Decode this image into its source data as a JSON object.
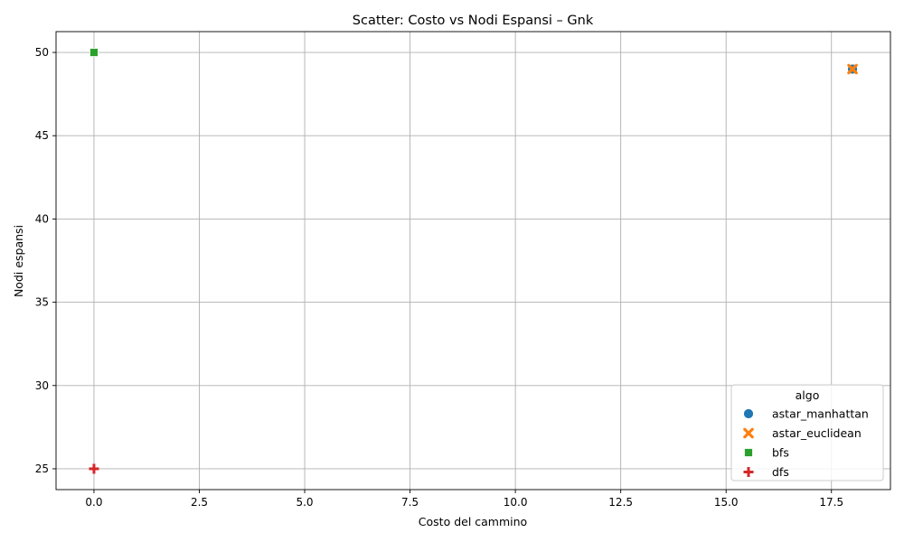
{
  "chart_data": {
    "type": "scatter",
    "title": "Scatter: Costo vs Nodi Espansi – Gnk",
    "xlabel": "Costo del cammino",
    "ylabel": "Nodi espansi",
    "xlim": [
      -0.9,
      18.9
    ],
    "ylim": [
      23.75,
      51.25
    ],
    "xticks": [
      0.0,
      2.5,
      5.0,
      7.5,
      10.0,
      12.5,
      15.0,
      17.5
    ],
    "xtick_labels": [
      "0.0",
      "2.5",
      "5.0",
      "7.5",
      "10.0",
      "12.5",
      "15.0",
      "17.5"
    ],
    "yticks": [
      25,
      30,
      35,
      40,
      45,
      50
    ],
    "ytick_labels": [
      "25",
      "30",
      "35",
      "40",
      "45",
      "50"
    ],
    "grid": true,
    "legend": {
      "title": "algo",
      "position": "lower-right"
    },
    "series": [
      {
        "name": "astar_manhattan",
        "marker": "circle",
        "color": "#1f77b4",
        "points": [
          [
            18,
            49
          ]
        ]
      },
      {
        "name": "astar_euclidean",
        "marker": "x",
        "color": "#ff7f0e",
        "points": [
          [
            18,
            49
          ]
        ]
      },
      {
        "name": "bfs",
        "marker": "square",
        "color": "#2ca02c",
        "points": [
          [
            0,
            50
          ]
        ]
      },
      {
        "name": "dfs",
        "marker": "plus",
        "color": "#d62728",
        "points": [
          [
            0,
            25
          ]
        ]
      }
    ]
  }
}
